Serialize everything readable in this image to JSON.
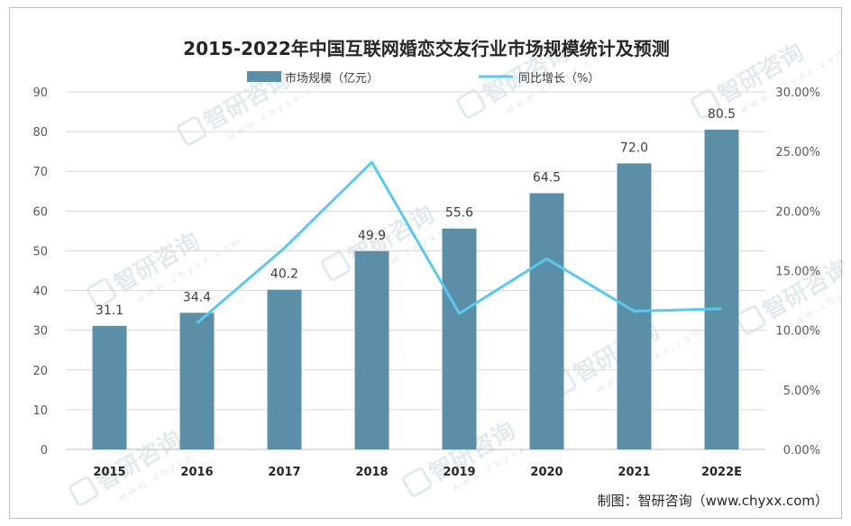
{
  "source_text": "制图：智研咨询（www.chyxx.com）",
  "watermark": {
    "text": "智研咨询",
    "url": "w w w . c h y x x . c o m"
  },
  "colors": {
    "bar": "#5b8fa8",
    "line": "#5bc8ef",
    "grid": "#d9d9d9"
  },
  "chart_data": {
    "type": "bar",
    "title": "2015-2022年中国互联网婚恋交友行业市场规模统计及预测",
    "categories": [
      "2015",
      "2016",
      "2017",
      "2018",
      "2019",
      "2020",
      "2021",
      "2022E"
    ],
    "series": [
      {
        "name": "市场规模（亿元）",
        "type": "bar",
        "axis": "left",
        "values": [
          31.1,
          34.4,
          40.2,
          49.9,
          55.6,
          64.5,
          72.0,
          80.5
        ],
        "labels": [
          "31.1",
          "34.4",
          "40.2",
          "49.9",
          "55.6",
          "64.5",
          "72.0",
          "80.5"
        ]
      },
      {
        "name": "同比增长（%）",
        "type": "line",
        "axis": "right",
        "values": [
          null,
          10.6,
          16.9,
          24.1,
          11.4,
          16.0,
          11.6,
          11.8
        ]
      }
    ],
    "y_left": {
      "min": 0,
      "max": 90,
      "step": 10,
      "ticks": [
        "0",
        "10",
        "20",
        "30",
        "40",
        "50",
        "60",
        "70",
        "80",
        "90"
      ]
    },
    "y_right": {
      "min": 0,
      "max": 30,
      "step": 5,
      "ticks": [
        "0.00%",
        "5.00%",
        "10.00%",
        "15.00%",
        "20.00%",
        "25.00%",
        "30.00%"
      ]
    },
    "grid": true,
    "legend_position": "top"
  }
}
